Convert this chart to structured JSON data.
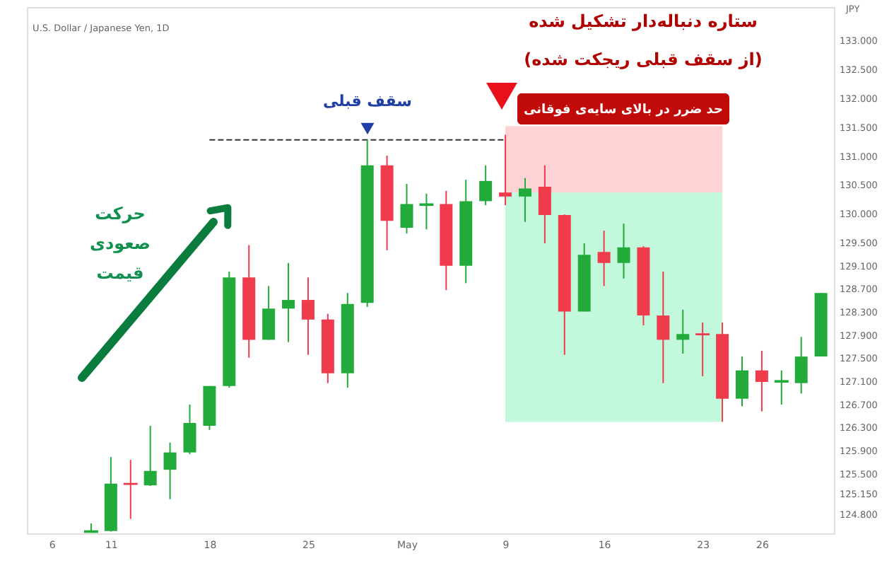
{
  "chart_data": {
    "type": "candlestick",
    "title": "U.S. Dollar / Japanese Yen, 1D",
    "ylabel": "JPY",
    "categories": [
      "6",
      null,
      null,
      "11",
      null,
      null,
      null,
      null,
      "18",
      null,
      null,
      null,
      null,
      "25",
      null,
      null,
      null,
      null,
      "May",
      null,
      null,
      null,
      null,
      "9",
      null,
      null,
      null,
      null,
      "16",
      null,
      null,
      null,
      null,
      "23",
      null,
      null,
      "26",
      null,
      null,
      null
    ],
    "ohlc": [
      null,
      null,
      [
        124.5,
        124.65,
        124.49,
        124.52
      ],
      [
        124.52,
        125.8,
        124.51,
        125.34
      ],
      [
        125.34,
        125.75,
        124.73,
        125.33
      ],
      [
        125.31,
        126.34,
        125.3,
        125.56
      ],
      [
        125.58,
        126.05,
        125.07,
        125.88
      ],
      [
        125.88,
        126.71,
        125.85,
        126.39
      ],
      [
        126.34,
        127.03,
        126.27,
        127.03
      ],
      [
        127.03,
        129.01,
        127.0,
        128.91
      ],
      [
        128.91,
        129.47,
        127.52,
        127.83
      ],
      [
        127.83,
        128.76,
        127.83,
        128.37
      ],
      [
        128.37,
        129.16,
        127.79,
        128.52
      ],
      [
        128.52,
        128.91,
        127.57,
        128.18
      ],
      [
        128.18,
        128.28,
        127.08,
        127.25
      ],
      [
        127.25,
        128.64,
        127.0,
        128.45
      ],
      [
        128.47,
        131.29,
        128.4,
        130.85
      ],
      [
        130.85,
        131.02,
        129.38,
        129.89
      ],
      [
        129.77,
        130.53,
        129.67,
        130.18
      ],
      [
        130.16,
        130.36,
        129.74,
        130.18
      ],
      [
        130.18,
        130.41,
        128.69,
        129.11
      ],
      [
        129.11,
        130.6,
        128.81,
        130.23
      ],
      [
        130.23,
        130.85,
        130.16,
        130.58
      ],
      [
        130.38,
        131.38,
        130.16,
        130.31
      ],
      [
        130.31,
        130.63,
        129.87,
        130.45
      ],
      [
        130.48,
        130.85,
        129.5,
        129.99
      ],
      [
        129.99,
        130.0,
        127.57,
        128.32
      ],
      [
        128.32,
        129.5,
        128.32,
        129.3
      ],
      [
        129.35,
        129.72,
        128.76,
        129.16
      ],
      [
        129.16,
        129.84,
        128.89,
        129.43
      ],
      [
        129.43,
        129.45,
        128.08,
        128.25
      ],
      [
        128.25,
        129.01,
        127.08,
        127.83
      ],
      [
        127.83,
        128.35,
        127.59,
        127.93
      ],
      [
        127.93,
        128.13,
        127.2,
        127.92
      ],
      [
        127.93,
        128.13,
        126.41,
        126.81
      ],
      [
        126.81,
        127.54,
        126.68,
        127.3
      ],
      [
        127.3,
        127.64,
        126.59,
        127.1
      ],
      [
        127.1,
        127.3,
        126.71,
        127.12
      ],
      [
        127.08,
        127.88,
        126.9,
        127.54
      ],
      [
        127.54,
        128.64,
        127.54,
        128.64
      ]
    ],
    "colors": [
      null,
      null,
      "#22ab3a",
      "#22ab3a",
      "#ef3b4b",
      "#22ab3a",
      "#22ab3a",
      "#22ab3a",
      "#22ab3a",
      "#22ab3a",
      "#ef3b4b",
      "#22ab3a",
      "#22ab3a",
      "#ef3b4b",
      "#ef3b4b",
      "#22ab3a",
      "#22ab3a",
      "#ef3b4b",
      "#22ab3a",
      "#22ab3a",
      "#ef3b4b",
      "#22ab3a",
      "#22ab3a",
      "#ef3b4b",
      "#22ab3a",
      "#ef3b4b",
      "#ef3b4b",
      "#22ab3a",
      "#ef3b4b",
      "#22ab3a",
      "#ef3b4b",
      "#ef3b4b",
      "#22ab3a",
      "#ef3b4b",
      "#ef3b4b",
      "#22ab3a",
      "#ef3b4b",
      "#22ab3a",
      "#22ab3a",
      "#22ab3a"
    ],
    "series": [
      {
        "type": "line",
        "values": [
          null,
          null,
          null,
          null,
          null,
          null,
          null,
          null,
          131.29,
          131.29,
          131.29,
          131.29,
          131.29,
          131.29,
          131.29,
          131.29,
          131.29,
          131.29,
          131.29,
          131.29,
          131.29,
          131.29,
          131.29,
          131.29,
          null,
          null,
          null,
          null,
          null,
          null,
          null,
          null,
          null,
          null,
          null,
          null,
          null,
          null,
          null,
          null
        ],
        "color": "#333333",
        "line_style": "dashed"
      },
      {
        "type": "line",
        "values": [
          null,
          null,
          null,
          null,
          null,
          null,
          null,
          null,
          null,
          null,
          null,
          null,
          null,
          null,
          null,
          null,
          null,
          null,
          null,
          null,
          null,
          null,
          null,
          null,
          null,
          null,
          null,
          null,
          null,
          null,
          null,
          null,
          null,
          null,
          null,
          null,
          null,
          null,
          null,
          null
        ],
        "upper": [
          null,
          null,
          null,
          null,
          null,
          null,
          null,
          null,
          null,
          null,
          null,
          null,
          null,
          null,
          null,
          null,
          null,
          null,
          null,
          null,
          null,
          null,
          null,
          131.53,
          131.53,
          131.53,
          131.53,
          131.53,
          131.53,
          131.53,
          131.53,
          131.53,
          131.53,
          131.53,
          131.53,
          null,
          null,
          null,
          null,
          null
        ],
        "lower": [
          null,
          null,
          null,
          null,
          null,
          null,
          null,
          null,
          null,
          null,
          null,
          null,
          null,
          null,
          null,
          null,
          null,
          null,
          null,
          null,
          null,
          null,
          null,
          130.38,
          130.38,
          130.38,
          130.38,
          130.38,
          130.38,
          130.38,
          130.38,
          130.38,
          130.38,
          130.38,
          130.38,
          null,
          null,
          null,
          null,
          null
        ],
        "color": "#ffd3d6"
      },
      {
        "type": "line",
        "values": [
          null,
          null,
          null,
          null,
          null,
          null,
          null,
          null,
          null,
          null,
          null,
          null,
          null,
          null,
          null,
          null,
          null,
          null,
          null,
          null,
          null,
          null,
          null,
          null,
          null,
          null,
          null,
          null,
          null,
          null,
          null,
          null,
          null,
          null,
          null,
          null,
          null,
          null,
          null,
          null
        ],
        "upper": [
          null,
          null,
          null,
          null,
          null,
          null,
          null,
          null,
          null,
          null,
          null,
          null,
          null,
          null,
          null,
          null,
          null,
          null,
          null,
          null,
          null,
          null,
          null,
          130.38,
          130.38,
          null,
          130.38,
          130.38,
          130.38,
          130.38,
          130.38,
          130.38,
          130.38,
          130.38,
          130.38,
          null,
          null,
          null,
          null,
          null
        ],
        "lower": [
          null,
          null,
          null,
          null,
          null,
          null,
          null,
          null,
          null,
          null,
          null,
          null,
          null,
          null,
          null,
          null,
          null,
          null,
          null,
          null,
          null,
          null,
          null,
          126.41,
          126.41,
          null,
          126.41,
          126.41,
          126.41,
          126.41,
          126.41,
          126.41,
          126.41,
          126.41,
          126.41,
          null,
          null,
          null,
          null,
          null
        ],
        "color": "#c2f8dc"
      }
    ],
    "annotations": [
      "سقف قبلی",
      "ستاره دنباله‌دار تشکیل شده\n(از سقف قبلی ریجکت شده)",
      "حد ضرر در بالای سایه‌ی فوقانی",
      "حرکت\nصعودی\nقیمت"
    ],
    "ylim": [
      124.48,
      133.59
    ],
    "yticks": [
      {
        "value": 133,
        "label": "133.000"
      },
      {
        "value": 132.5,
        "label": "132.500"
      },
      {
        "value": 132,
        "label": "132.000"
      },
      {
        "value": 131.5,
        "label": "131.500"
      },
      {
        "value": 131,
        "label": "131.000"
      },
      {
        "value": 130.5,
        "label": "130.500"
      },
      {
        "value": 130,
        "label": "130.000"
      },
      {
        "value": 129.5,
        "label": "129.500"
      },
      {
        "value": 129.1,
        "label": "129.100"
      },
      {
        "value": 128.7,
        "label": "128.700"
      },
      {
        "value": 128.3,
        "label": "128.300"
      },
      {
        "value": 127.9,
        "label": "127.900"
      },
      {
        "value": 127.5,
        "label": "127.500"
      },
      {
        "value": 127.1,
        "label": "127.100"
      },
      {
        "value": 126.7,
        "label": "126.700"
      },
      {
        "value": 126.3,
        "label": "126.300"
      },
      {
        "value": 125.9,
        "label": "125.900"
      },
      {
        "value": 125.5,
        "label": "125.500"
      },
      {
        "value": 125.15,
        "label": "125.150"
      },
      {
        "value": 124.8,
        "label": "124.800"
      }
    ],
    "grid": false
  }
}
